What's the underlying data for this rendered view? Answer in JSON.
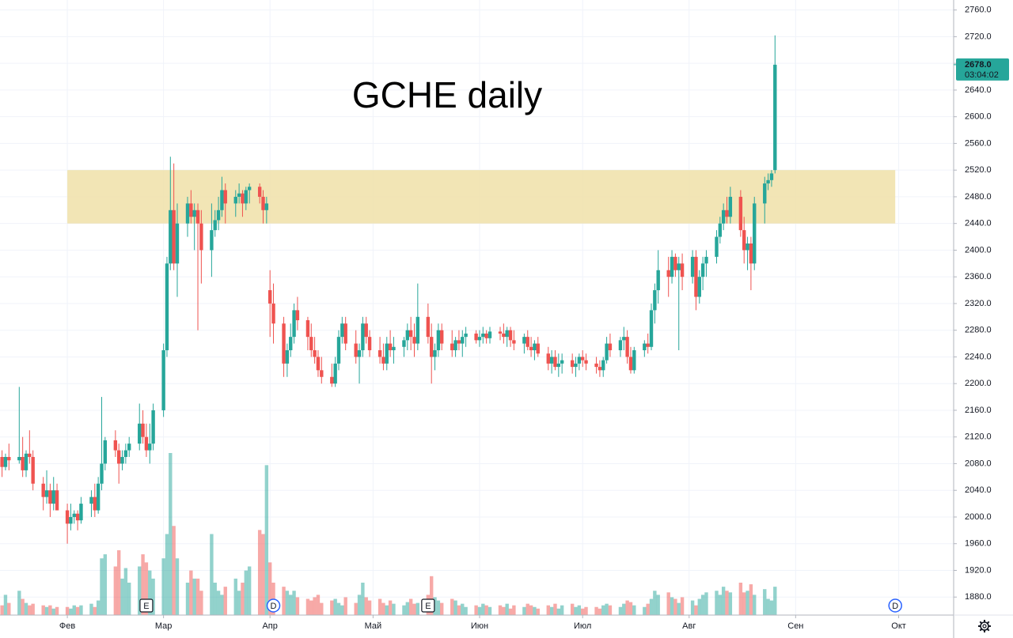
{
  "chart_data": {
    "type": "candlestick",
    "title": "GCHE daily",
    "up_color": "#26a69a",
    "down_color": "#ef5350",
    "zone": {
      "from": 2440,
      "to": 2520,
      "x": [
        31,
        272
      ],
      "color": "#f0e0a8"
    },
    "xlim": [
      11.4,
      289
    ],
    "ylim": [
      1853,
      2775
    ],
    "xticks": [
      {
        "value": 31,
        "label": "Фев"
      },
      {
        "value": 59,
        "label": "Мар"
      },
      {
        "value": 90,
        "label": "Апр"
      },
      {
        "value": 120,
        "label": "Май"
      },
      {
        "value": 151,
        "label": "Июн"
      },
      {
        "value": 181,
        "label": "Июл"
      },
      {
        "value": 212,
        "label": "Авг"
      },
      {
        "value": 243,
        "label": "Сен"
      },
      {
        "value": 273,
        "label": "Окт"
      }
    ],
    "yticks": [
      {
        "value": 1880,
        "label": "1880.0"
      },
      {
        "value": 1920,
        "label": "1920.0"
      },
      {
        "value": 1960,
        "label": "1960.0"
      },
      {
        "value": 2000,
        "label": "2000.0"
      },
      {
        "value": 2040,
        "label": "2040.0"
      },
      {
        "value": 2080,
        "label": "2080.0"
      },
      {
        "value": 2120,
        "label": "2120.0"
      },
      {
        "value": 2160,
        "label": "2160.0"
      },
      {
        "value": 2200,
        "label": "2200.0"
      },
      {
        "value": 2240,
        "label": "2240.0"
      },
      {
        "value": 2280,
        "label": "2280.0"
      },
      {
        "value": 2320,
        "label": "2320.0"
      },
      {
        "value": 2360,
        "label": "2360.0"
      },
      {
        "value": 2400,
        "label": "2400.0"
      },
      {
        "value": 2440,
        "label": "2440.0"
      },
      {
        "value": 2480,
        "label": "2480.0"
      },
      {
        "value": 2520,
        "label": "2520.0"
      },
      {
        "value": 2560,
        "label": "2560.0"
      },
      {
        "value": 2600,
        "label": "2600.0"
      },
      {
        "value": 2640,
        "label": "2640.0"
      },
      {
        "value": 2680,
        "label": "2680.0"
      },
      {
        "value": 2720,
        "label": "2720.0"
      },
      {
        "value": 2760,
        "label": "2760.0"
      }
    ],
    "grid": true,
    "last_price": {
      "value": 2678,
      "label": "2678.0"
    },
    "countdown": "03:04:02",
    "events": [
      {
        "x": 54,
        "label": "E"
      },
      {
        "x": 91,
        "label": "D"
      },
      {
        "x": 136,
        "label": "E"
      },
      {
        "x": 272,
        "label": "D"
      }
    ],
    "x": [
      12,
      13,
      14,
      17,
      18,
      19,
      20,
      21,
      24,
      25,
      26,
      27,
      28,
      31,
      32,
      33,
      34,
      35,
      38,
      39,
      40,
      41,
      42,
      45,
      46,
      47,
      48,
      49,
      52,
      53,
      54,
      55,
      56,
      59,
      60,
      61,
      62,
      63,
      66,
      67,
      68,
      69,
      70,
      73,
      74,
      75,
      76,
      77,
      80,
      81,
      82,
      83,
      84,
      87,
      88,
      89,
      90,
      91,
      94,
      95,
      96,
      97,
      98,
      101,
      102,
      103,
      104,
      105,
      108,
      109,
      110,
      111,
      112,
      115,
      116,
      117,
      118,
      119,
      122,
      123,
      124,
      125,
      126,
      129,
      130,
      131,
      132,
      133,
      136,
      137,
      138,
      139,
      140,
      143,
      144,
      145,
      146,
      147,
      150,
      151,
      152,
      153,
      154,
      157,
      158,
      159,
      160,
      161,
      164,
      165,
      166,
      167,
      168,
      171,
      172,
      173,
      174,
      175,
      178,
      179,
      180,
      181,
      182,
      185,
      186,
      187,
      188,
      189,
      192,
      193,
      194,
      195,
      196,
      199,
      200,
      201,
      202,
      203,
      206,
      207,
      208,
      209,
      210,
      213,
      214,
      215,
      216,
      217,
      220,
      221,
      222,
      223,
      224,
      227,
      228,
      229,
      230,
      231,
      234,
      235,
      236,
      237
    ],
    "ohlc": [
      [
        2090,
        2100,
        2060,
        2075
      ],
      [
        2075,
        2095,
        2070,
        2090
      ],
      [
        2090,
        2110,
        2070,
        2085
      ],
      [
        2085,
        2195,
        2080,
        2090
      ],
      [
        2090,
        2120,
        2060,
        2070
      ],
      [
        2070,
        2100,
        2060,
        2095
      ],
      [
        2095,
        2130,
        2080,
        2090
      ],
      [
        2090,
        2100,
        2040,
        2050
      ],
      [
        2050,
        2060,
        2010,
        2030
      ],
      [
        2030,
        2070,
        2020,
        2040
      ],
      [
        2040,
        2050,
        2000,
        2020
      ],
      [
        2020,
        2060,
        2010,
        2040
      ],
      [
        2040,
        2050,
        2010,
        2010
      ],
      [
        2010,
        2020,
        1960,
        1990
      ],
      [
        1990,
        2020,
        1980,
        2000
      ],
      [
        2000,
        2010,
        1990,
        2005
      ],
      [
        2005,
        2010,
        1980,
        1995
      ],
      [
        1995,
        2030,
        1990,
        2020
      ],
      [
        2020,
        2040,
        2000,
        2030
      ],
      [
        2030,
        2050,
        2000,
        2010
      ],
      [
        2010,
        2060,
        2005,
        2050
      ],
      [
        2050,
        2180,
        2040,
        2080
      ],
      [
        2080,
        2120,
        2070,
        2115
      ],
      [
        2115,
        2130,
        2090,
        2100
      ],
      [
        2100,
        2110,
        2050,
        2080
      ],
      [
        2080,
        2100,
        2070,
        2090
      ],
      [
        2090,
        2110,
        2080,
        2100
      ],
      [
        2100,
        2120,
        2090,
        2110
      ],
      [
        2110,
        2170,
        2100,
        2140
      ],
      [
        2140,
        2160,
        2110,
        2120
      ],
      [
        2120,
        2140,
        2090,
        2100
      ],
      [
        2100,
        2140,
        2080,
        2110
      ],
      [
        2110,
        2170,
        2100,
        2160
      ],
      [
        2160,
        2260,
        2150,
        2250
      ],
      [
        2250,
        2390,
        2240,
        2380
      ],
      [
        2380,
        2540,
        2370,
        2460
      ],
      [
        2460,
        2530,
        2370,
        2380
      ],
      [
        2380,
        2470,
        2330,
        2440
      ],
      [
        2440,
        2480,
        2420,
        2470
      ],
      [
        2470,
        2490,
        2440,
        2450
      ],
      [
        2450,
        2470,
        2400,
        2460
      ],
      [
        2460,
        2470,
        2280,
        2440
      ],
      [
        2440,
        2460,
        2350,
        2400
      ],
      [
        2400,
        2470,
        2360,
        2430
      ],
      [
        2430,
        2460,
        2420,
        2445
      ],
      [
        2445,
        2480,
        2430,
        2460
      ],
      [
        2460,
        2510,
        2450,
        2490
      ],
      [
        2490,
        2500,
        2440,
        2470
      ],
      [
        2470,
        2490,
        2450,
        2480
      ],
      [
        2480,
        2500,
        2470,
        2485
      ],
      [
        2485,
        2490,
        2450,
        2470
      ],
      [
        2470,
        2495,
        2460,
        2490
      ],
      [
        2490,
        2500,
        2470,
        2495
      ],
      [
        2495,
        2500,
        2470,
        2480
      ],
      [
        2480,
        2490,
        2440,
        2460
      ],
      [
        2460,
        2480,
        2440,
        2470
      ],
      [
        2340,
        2370,
        2270,
        2320
      ],
      [
        2320,
        2350,
        2260,
        2290
      ],
      [
        2290,
        2300,
        2210,
        2230
      ],
      [
        2230,
        2260,
        2210,
        2250
      ],
      [
        2250,
        2290,
        2240,
        2270
      ],
      [
        2270,
        2320,
        2260,
        2310
      ],
      [
        2310,
        2330,
        2280,
        2295
      ],
      [
        2295,
        2300,
        2250,
        2270
      ],
      [
        2270,
        2290,
        2240,
        2250
      ],
      [
        2250,
        2270,
        2230,
        2240
      ],
      [
        2240,
        2250,
        2210,
        2220
      ],
      [
        2220,
        2240,
        2200,
        2210
      ],
      [
        2210,
        2230,
        2195,
        2200
      ],
      [
        2200,
        2240,
        2195,
        2230
      ],
      [
        2230,
        2280,
        2220,
        2270
      ],
      [
        2270,
        2300,
        2260,
        2290
      ],
      [
        2290,
        2300,
        2250,
        2260
      ],
      [
        2260,
        2280,
        2230,
        2240
      ],
      [
        2240,
        2260,
        2200,
        2250
      ],
      [
        2250,
        2300,
        2240,
        2290
      ],
      [
        2290,
        2300,
        2260,
        2270
      ],
      [
        2270,
        2280,
        2240,
        2250
      ],
      [
        2250,
        2270,
        2230,
        2240
      ],
      [
        2240,
        2260,
        2220,
        2230
      ],
      [
        2230,
        2270,
        2220,
        2260
      ],
      [
        2260,
        2280,
        2240,
        2250
      ],
      [
        2250,
        2270,
        2230,
        2255
      ],
      [
        2255,
        2270,
        2240,
        2265
      ],
      [
        2265,
        2290,
        2250,
        2280
      ],
      [
        2280,
        2300,
        2250,
        2270
      ],
      [
        2270,
        2290,
        2240,
        2260
      ],
      [
        2260,
        2350,
        2250,
        2300
      ],
      [
        2300,
        2320,
        2260,
        2270
      ],
      [
        2270,
        2290,
        2200,
        2240
      ],
      [
        2240,
        2260,
        2220,
        2250
      ],
      [
        2250,
        2290,
        2240,
        2280
      ],
      [
        2280,
        2290,
        2250,
        2260
      ],
      [
        2260,
        2280,
        2240,
        2250
      ],
      [
        2250,
        2270,
        2240,
        2265
      ],
      [
        2265,
        2280,
        2250,
        2260
      ],
      [
        2260,
        2280,
        2240,
        2270
      ],
      [
        2270,
        2285,
        2255,
        2275
      ],
      [
        2275,
        2280,
        2260,
        2265
      ],
      [
        2265,
        2280,
        2255,
        2270
      ],
      [
        2270,
        2285,
        2260,
        2275
      ],
      [
        2275,
        2280,
        2260,
        2268
      ],
      [
        2268,
        2285,
        2260,
        2278
      ],
      [
        2278,
        2285,
        2265,
        2275
      ],
      [
        2275,
        2290,
        2260,
        2270
      ],
      [
        2270,
        2285,
        2255,
        2280
      ],
      [
        2280,
        2285,
        2255,
        2265
      ],
      [
        2265,
        2280,
        2250,
        2260
      ],
      [
        2260,
        2275,
        2245,
        2270
      ],
      [
        2270,
        2280,
        2250,
        2255
      ],
      [
        2255,
        2270,
        2240,
        2250
      ],
      [
        2250,
        2265,
        2235,
        2260
      ],
      [
        2260,
        2270,
        2240,
        2245
      ],
      [
        2245,
        2255,
        2220,
        2230
      ],
      [
        2230,
        2250,
        2215,
        2240
      ],
      [
        2240,
        2250,
        2220,
        2225
      ],
      [
        2225,
        2245,
        2210,
        2230
      ],
      [
        2230,
        2245,
        2215,
        2235
      ],
      [
        2235,
        2245,
        2215,
        2225
      ],
      [
        2225,
        2240,
        2210,
        2230
      ],
      [
        2230,
        2245,
        2220,
        2240
      ],
      [
        2240,
        2250,
        2225,
        2235
      ],
      [
        2235,
        2245,
        2220,
        2230
      ],
      [
        2230,
        2240,
        2215,
        2225
      ],
      [
        2225,
        2235,
        2210,
        2220
      ],
      [
        2220,
        2240,
        2210,
        2235
      ],
      [
        2235,
        2270,
        2230,
        2260
      ],
      [
        2260,
        2275,
        2240,
        2250
      ],
      [
        2250,
        2270,
        2240,
        2265
      ],
      [
        2265,
        2285,
        2250,
        2270
      ],
      [
        2270,
        2280,
        2230,
        2240
      ],
      [
        2240,
        2255,
        2215,
        2220
      ],
      [
        2220,
        2255,
        2215,
        2250
      ],
      [
        2250,
        2265,
        2240,
        2260
      ],
      [
        2260,
        2275,
        2245,
        2255
      ],
      [
        2255,
        2320,
        2250,
        2310
      ],
      [
        2310,
        2350,
        2290,
        2340
      ],
      [
        2340,
        2400,
        2320,
        2370
      ],
      [
        2370,
        2390,
        2330,
        2360
      ],
      [
        2360,
        2400,
        2350,
        2390
      ],
      [
        2390,
        2395,
        2360,
        2370
      ],
      [
        2370,
        2390,
        2250,
        2380
      ],
      [
        2380,
        2395,
        2340,
        2360
      ],
      [
        2360,
        2400,
        2350,
        2390
      ],
      [
        2390,
        2400,
        2310,
        2330
      ],
      [
        2330,
        2370,
        2320,
        2360
      ],
      [
        2360,
        2390,
        2340,
        2380
      ],
      [
        2380,
        2400,
        2360,
        2390
      ],
      [
        2390,
        2430,
        2380,
        2420
      ],
      [
        2420,
        2450,
        2410,
        2440
      ],
      [
        2440,
        2470,
        2430,
        2460
      ],
      [
        2460,
        2480,
        2440,
        2450
      ],
      [
        2450,
        2495,
        2440,
        2480
      ],
      [
        2480,
        2490,
        2420,
        2430
      ],
      [
        2430,
        2450,
        2380,
        2400
      ],
      [
        2400,
        2420,
        2370,
        2410
      ],
      [
        2410,
        2420,
        2340,
        2380
      ],
      [
        2380,
        2480,
        2370,
        2470
      ],
      [
        2470,
        2510,
        2440,
        2500
      ],
      [
        2500,
        2515,
        2490,
        2505
      ],
      [
        2505,
        2520,
        2495,
        2515
      ],
      [
        2520,
        2722,
        2515,
        2678
      ]
    ],
    "volume": [
      12,
      25,
      15,
      30,
      20,
      15,
      12,
      14,
      12,
      10,
      12,
      8,
      10,
      10,
      8,
      12,
      10,
      12,
      14,
      10,
      18,
      70,
      75,
      60,
      80,
      45,
      58,
      40,
      60,
      75,
      65,
      55,
      45,
      70,
      100,
      200,
      110,
      70,
      40,
      55,
      45,
      45,
      30,
      100,
      40,
      30,
      25,
      35,
      45,
      30,
      40,
      55,
      60,
      105,
      100,
      185,
      65,
      40,
      35,
      30,
      25,
      30,
      22,
      20,
      18,
      22,
      25,
      15,
      18,
      20,
      15,
      12,
      22,
      15,
      25,
      40,
      22,
      18,
      20,
      15,
      12,
      18,
      14,
      12,
      16,
      20,
      14,
      15,
      25,
      48,
      22,
      18,
      15,
      20,
      18,
      12,
      14,
      10,
      12,
      10,
      14,
      12,
      10,
      12,
      10,
      14,
      8,
      12,
      10,
      14,
      12,
      10,
      8,
      12,
      10,
      14,
      8,
      12,
      14,
      10,
      12,
      8,
      10,
      10,
      8,
      12,
      14,
      12,
      10,
      14,
      18,
      16,
      12,
      10,
      14,
      20,
      30,
      25,
      28,
      22,
      20,
      15,
      22,
      18,
      12,
      20,
      25,
      28,
      30,
      25,
      35,
      30,
      28,
      40,
      28,
      30,
      38,
      25,
      32,
      20,
      18,
      35
    ]
  }
}
